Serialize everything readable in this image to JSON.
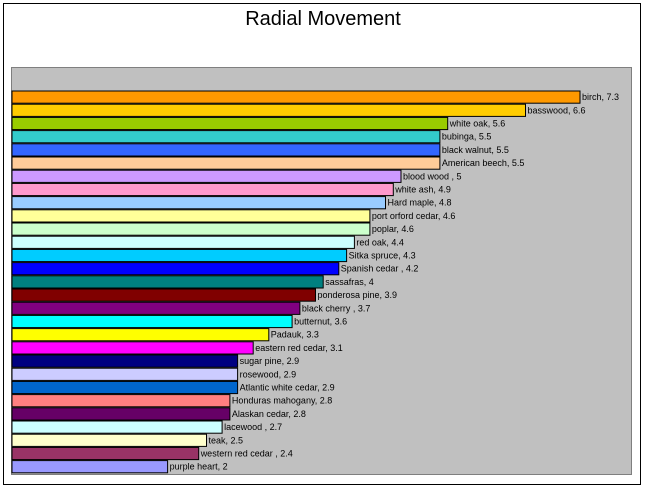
{
  "chart_data": {
    "type": "bar",
    "orientation": "horizontal",
    "title": "Radial Movement",
    "xlabel": "",
    "ylabel": "",
    "xlim": [
      0,
      7.65
    ],
    "grid": false,
    "legend": "none",
    "plot_background": "#c0c0c0",
    "bars": [
      {
        "label": "birch, 7.3",
        "value": 7.3,
        "color": "#ff9900"
      },
      {
        "label": "basswood, 6.6",
        "value": 6.6,
        "color": "#ffcc00"
      },
      {
        "label": "white oak, 5.6",
        "value": 5.6,
        "color": "#99cc00"
      },
      {
        "label": "bubinga, 5.5",
        "value": 5.5,
        "color": "#33cccc"
      },
      {
        "label": "black walnut, 5.5",
        "value": 5.5,
        "color": "#3366ff"
      },
      {
        "label": "American beech, 5.5",
        "value": 5.5,
        "color": "#ffcc99"
      },
      {
        "label": "blood wood , 5",
        "value": 5.0,
        "color": "#cc99ff"
      },
      {
        "label": "white ash, 4.9",
        "value": 4.9,
        "color": "#ff99cc"
      },
      {
        "label": "Hard maple, 4.8",
        "value": 4.8,
        "color": "#99ccff"
      },
      {
        "label": "port orford cedar, 4.6",
        "value": 4.6,
        "color": "#ffff99"
      },
      {
        "label": "poplar, 4.6",
        "value": 4.6,
        "color": "#ccffcc"
      },
      {
        "label": "red oak, 4.4",
        "value": 4.4,
        "color": "#ccffff"
      },
      {
        "label": "Sitka spruce, 4.3",
        "value": 4.3,
        "color": "#00ccff"
      },
      {
        "label": "Spanish cedar , 4.2",
        "value": 4.2,
        "color": "#0000ff"
      },
      {
        "label": "sassafras, 4",
        "value": 4.0,
        "color": "#008080"
      },
      {
        "label": "ponderosa pine, 3.9",
        "value": 3.9,
        "color": "#800000"
      },
      {
        "label": "black cherry , 3.7",
        "value": 3.7,
        "color": "#800080"
      },
      {
        "label": "butternut, 3.6",
        "value": 3.6,
        "color": "#00ffff"
      },
      {
        "label": "Padauk, 3.3",
        "value": 3.3,
        "color": "#ffff00"
      },
      {
        "label": "eastern red cedar, 3.1",
        "value": 3.1,
        "color": "#ff00ff"
      },
      {
        "label": "sugar pine, 2.9",
        "value": 2.9,
        "color": "#000080"
      },
      {
        "label": "rosewood, 2.9",
        "value": 2.9,
        "color": "#ccccff"
      },
      {
        "label": "Atlantic white cedar, 2.9",
        "value": 2.9,
        "color": "#0066cc"
      },
      {
        "label": "Honduras mahogany, 2.8",
        "value": 2.8,
        "color": "#ff8080"
      },
      {
        "label": "Alaskan cedar, 2.8",
        "value": 2.8,
        "color": "#660066"
      },
      {
        "label": "lacewood , 2.7",
        "value": 2.7,
        "color": "#ccffff"
      },
      {
        "label": "teak, 2.5",
        "value": 2.5,
        "color": "#ffffcc"
      },
      {
        "label": "western red cedar , 2.4",
        "value": 2.4,
        "color": "#993366"
      },
      {
        "label": "purple heart, 2",
        "value": 2.0,
        "color": "#9999ff"
      }
    ]
  }
}
